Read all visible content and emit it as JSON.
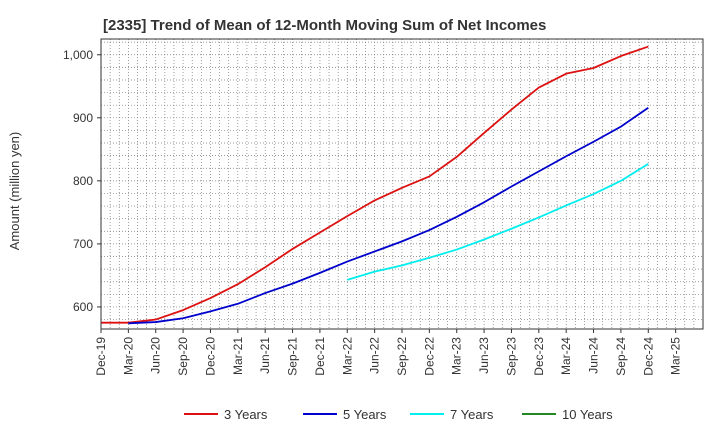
{
  "chart_data": {
    "type": "line",
    "title": "[2335]  Trend of Mean of 12-Month Moving Sum of Net Incomes",
    "xlabel": "",
    "ylabel": "Amount (million yen)",
    "ylim": [
      565,
      1025
    ],
    "yticks": [
      600,
      700,
      800,
      900,
      1000
    ],
    "ytick_labels": [
      "600",
      "700",
      "800",
      "900",
      "1,000"
    ],
    "x_tick_labels": [
      "Dec-19",
      "Mar-20",
      "Jun-20",
      "Sep-20",
      "Dec-20",
      "Mar-21",
      "Jun-21",
      "Sep-21",
      "Dec-21",
      "Mar-22",
      "Jun-22",
      "Sep-22",
      "Dec-22",
      "Mar-23",
      "Jun-23",
      "Sep-23",
      "Dec-23",
      "Mar-24",
      "Jun-24",
      "Sep-24",
      "Dec-24",
      "Mar-25"
    ],
    "grid": true,
    "legend_position": "bottom",
    "series": [
      {
        "name": "3 Years",
        "color": "#dd1111",
        "x": [
          "Dec-19",
          "Mar-20",
          "Jun-20",
          "Sep-20",
          "Dec-20",
          "Mar-21",
          "Jun-21",
          "Sep-21",
          "Dec-21",
          "Mar-22",
          "Jun-22",
          "Sep-22",
          "Dec-22",
          "Mar-23",
          "Jun-23",
          "Sep-23",
          "Dec-23",
          "Mar-24",
          "Jun-24",
          "Sep-24",
          "Dec-24"
        ],
        "values": [
          575,
          575,
          580,
          595,
          614,
          636,
          663,
          692,
          718,
          744,
          769,
          789,
          807,
          838,
          876,
          913,
          948,
          970,
          979,
          998,
          1013
        ]
      },
      {
        "name": "5 Years",
        "color": "#0000cc",
        "x": [
          "Mar-20",
          "Jun-20",
          "Sep-20",
          "Dec-20",
          "Mar-21",
          "Jun-21",
          "Sep-21",
          "Dec-21",
          "Mar-22",
          "Jun-22",
          "Sep-22",
          "Dec-22",
          "Mar-23",
          "Jun-23",
          "Sep-23",
          "Dec-23",
          "Mar-24",
          "Jun-24",
          "Sep-24",
          "Dec-24"
        ],
        "values": [
          574,
          576,
          582,
          593,
          605,
          622,
          637,
          654,
          672,
          688,
          704,
          722,
          743,
          766,
          791,
          815,
          839,
          862,
          886,
          916
        ]
      },
      {
        "name": "7 Years",
        "color": "#00eeee",
        "x": [
          "Mar-22",
          "Jun-22",
          "Sep-22",
          "Dec-22",
          "Mar-23",
          "Jun-23",
          "Sep-23",
          "Dec-23",
          "Mar-24",
          "Jun-24",
          "Sep-24",
          "Dec-24"
        ],
        "values": [
          643,
          656,
          666,
          678,
          691,
          707,
          724,
          742,
          761,
          779,
          800,
          827
        ]
      },
      {
        "name": "10 Years",
        "color": "#228822",
        "x": [],
        "values": []
      }
    ]
  }
}
